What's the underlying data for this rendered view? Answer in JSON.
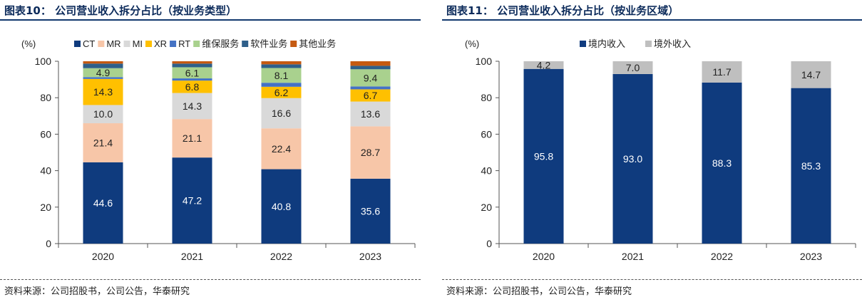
{
  "left": {
    "title": "图表10：  公司营业收入拆分占比（按业务类型）",
    "source": "资料来源：公司招股书，公司公告，华泰研究"
  },
  "right": {
    "title": "图表11：  公司营业收入拆分占比（按业务区域）",
    "source": "资料来源：公司招股书，公司公告，华泰研究"
  },
  "chart_data": [
    {
      "type": "bar",
      "stacked": true,
      "unit_label": "(%)",
      "categories": [
        "2020",
        "2021",
        "2022",
        "2023"
      ],
      "ylim": [
        0,
        100
      ],
      "yticks": [
        0,
        20,
        40,
        60,
        80,
        100
      ],
      "legend_position": "top",
      "series": [
        {
          "name": "CT",
          "color": "#0f3b7e",
          "values": [
            44.6,
            47.2,
            40.8,
            35.6
          ],
          "label_color": "#ffffff"
        },
        {
          "name": "MR",
          "color": "#f7c6a8",
          "values": [
            21.4,
            21.1,
            22.4,
            28.7
          ],
          "label_color": "#222222"
        },
        {
          "name": "MI",
          "color": "#d9d9d9",
          "values": [
            10.0,
            14.3,
            16.6,
            13.6
          ],
          "label_color": "#222222"
        },
        {
          "name": "XR",
          "color": "#ffc000",
          "values": [
            14.3,
            6.8,
            6.2,
            6.7
          ],
          "label_color": "#222222"
        },
        {
          "name": "RT",
          "color": "#4472c4",
          "values": [
            1.0,
            1.2,
            2.2,
            1.6
          ],
          "label_color": null
        },
        {
          "name": "维保服务",
          "color": "#a9d18e",
          "values": [
            4.9,
            6.1,
            8.1,
            9.4
          ],
          "label_color": "#222222"
        },
        {
          "name": "软件业务",
          "color": "#2e5f8a",
          "values": [
            2.5,
            2.0,
            2.0,
            1.9
          ],
          "label_color": null
        },
        {
          "name": "其他业务",
          "color": "#c55a11",
          "values": [
            1.3,
            1.3,
            1.7,
            2.5
          ],
          "label_color": null
        }
      ]
    },
    {
      "type": "bar",
      "stacked": true,
      "unit_label": "(%)",
      "categories": [
        "2020",
        "2021",
        "2022",
        "2023"
      ],
      "ylim": [
        0,
        100
      ],
      "yticks": [
        0,
        20,
        40,
        60,
        80,
        100
      ],
      "legend_position": "top",
      "series": [
        {
          "name": "境内收入",
          "color": "#0f3b7e",
          "values": [
            95.8,
            93.0,
            88.3,
            85.3
          ],
          "label_color": "#ffffff"
        },
        {
          "name": "境外收入",
          "color": "#bfbfbf",
          "values": [
            4.2,
            7.0,
            11.7,
            14.7
          ],
          "label_color": "#222222"
        }
      ]
    }
  ]
}
